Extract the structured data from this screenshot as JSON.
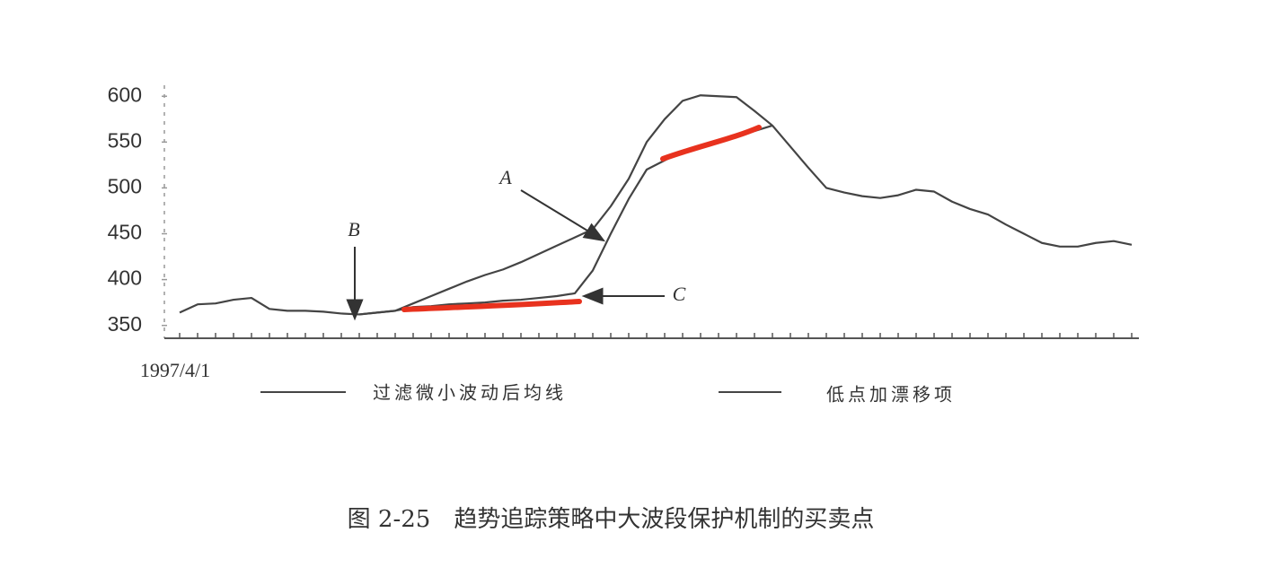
{
  "chart_data": {
    "type": "line",
    "caption": "图 2-25　趋势追踪策略中大波段保护机制的买卖点",
    "categories": [
      "1997/4/1",
      null,
      null,
      null,
      null,
      null,
      null,
      null,
      null,
      null,
      null,
      null,
      null,
      null,
      null,
      null,
      null,
      null,
      null,
      null,
      null,
      null,
      null,
      null,
      null,
      null,
      null,
      null,
      null,
      null,
      null,
      null,
      null,
      null,
      null,
      null,
      null,
      null,
      null,
      null,
      null,
      null,
      null,
      null,
      null,
      null,
      null,
      null,
      null,
      null,
      null,
      null,
      null,
      null
    ],
    "series": [
      {
        "name": "过滤微小波动后均线",
        "color": "#444444",
        "values": [
          364,
          373,
          374,
          378,
          380,
          368,
          366,
          366,
          365,
          363,
          362,
          364,
          366,
          374,
          382,
          390,
          398,
          405,
          411,
          419,
          428,
          437,
          446,
          455,
          480,
          510,
          550,
          575,
          595,
          601,
          600,
          599,
          584,
          568,
          545,
          522,
          500,
          495,
          491,
          489,
          492,
          498,
          496,
          485,
          477,
          471,
          460,
          450,
          440,
          436,
          436,
          440,
          442,
          438
        ]
      },
      {
        "name": "低点加漂移项",
        "color": "#444444",
        "values": [
          null,
          null,
          null,
          null,
          null,
          null,
          null,
          null,
          null,
          null,
          362,
          364,
          366,
          370,
          371,
          373,
          374,
          375,
          377,
          378,
          380,
          382,
          385,
          410,
          450,
          488,
          520,
          530,
          540,
          546,
          552,
          556,
          562,
          568,
          null,
          null,
          null,
          null,
          null,
          null,
          null,
          null,
          null,
          null,
          null,
          null,
          null,
          null,
          null,
          null,
          null,
          null,
          null,
          null
        ]
      }
    ],
    "annotations": [
      "A",
      "B",
      "C"
    ],
    "ylim": [
      336,
      612
    ],
    "yticks": [
      350,
      400,
      450,
      500,
      550,
      600
    ],
    "grid": false
  }
}
